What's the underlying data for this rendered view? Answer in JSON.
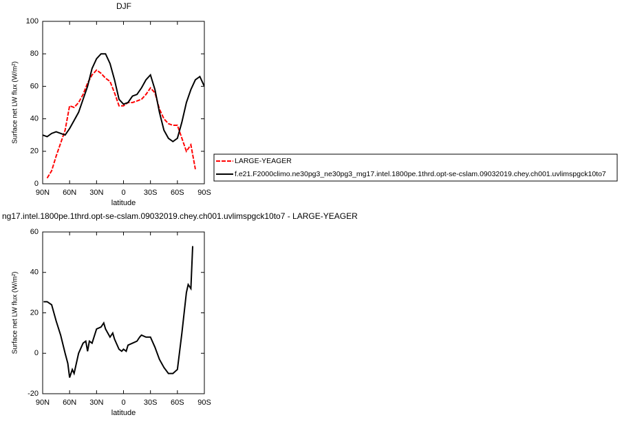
{
  "chart_data": [
    {
      "type": "line",
      "title": "DJF",
      "xlabel": "latitude",
      "ylabel": "Surface net LW flux (W/m²)",
      "x": [
        90,
        85,
        80,
        75,
        70,
        65,
        60,
        55,
        50,
        45,
        40,
        35,
        30,
        25,
        20,
        15,
        10,
        5,
        0,
        -5,
        -10,
        -15,
        -20,
        -25,
        -30,
        -35,
        -40,
        -45,
        -50,
        -55,
        -60,
        -65,
        -70,
        -75,
        -80,
        -85,
        -90
      ],
      "series": [
        {
          "name": "LARGE-YEAGER",
          "color": "#ff0000",
          "dashed": true,
          "values": [
            null,
            3.5,
            8,
            17,
            25,
            33,
            48,
            47,
            50,
            55,
            62,
            67,
            70,
            68,
            65,
            63,
            56,
            48,
            48,
            50,
            50,
            51,
            52,
            55,
            59,
            56,
            46,
            40,
            37,
            36,
            36,
            28,
            20,
            24,
            9,
            null,
            null
          ]
        },
        {
          "name": "f.e21.F2000climo.ne30pg3_ne30pg3_mg17.intel.1800pe.1thrd.opt-se-cslam.09032019.chey.ch001.uvlimspgck10to7",
          "color": "#000000",
          "dashed": false,
          "values": [
            30,
            29,
            31,
            32,
            31,
            30,
            34,
            39,
            44,
            52,
            60,
            71,
            77,
            80,
            80,
            74,
            64,
            52,
            49,
            50,
            54,
            55,
            59,
            64,
            67,
            58,
            44,
            33,
            28,
            26,
            28,
            38,
            50,
            58,
            64,
            66,
            60
          ]
        }
      ],
      "xlim": [
        90,
        -90
      ],
      "xticks": [
        {
          "value": 90,
          "label": "90N"
        },
        {
          "value": 60,
          "label": "60N"
        },
        {
          "value": 30,
          "label": "30N"
        },
        0,
        {
          "value": -30,
          "label": "30S"
        },
        {
          "value": -60,
          "label": "60S"
        },
        {
          "value": -90,
          "label": "90S"
        }
      ],
      "ylim": [
        0,
        100
      ],
      "yticks": [
        0,
        20,
        40,
        60,
        80,
        100
      ],
      "legend": "right"
    },
    {
      "type": "line",
      "title": "ng17.intel.1800pe.1thrd.opt-se-cslam.09032019.chey.ch001.uvlimspgck10to7 - LARGE-YEAGER",
      "xlabel": "latitude",
      "ylabel": "Surface net LW flux (W/m²)",
      "x": [
        89,
        85,
        80,
        75,
        70,
        65,
        62,
        60,
        57,
        55,
        50,
        45,
        42,
        40,
        38,
        35,
        30,
        25,
        22,
        20,
        15,
        12,
        10,
        5,
        2,
        0,
        -3,
        -5,
        -10,
        -15,
        -18,
        -20,
        -25,
        -30,
        -35,
        -40,
        -45,
        -50,
        -55,
        -60,
        -65,
        -70,
        -72,
        -75,
        -77
      ],
      "values": [
        25.5,
        25.5,
        24,
        16,
        9,
        0,
        -5,
        -12,
        -8,
        -10,
        0,
        5,
        6,
        1,
        6,
        5,
        12,
        13,
        15,
        12,
        8,
        10,
        7,
        2,
        1,
        2,
        1,
        4,
        5,
        6,
        8,
        9,
        8,
        8,
        3,
        -3,
        -7,
        -10,
        -10,
        -8,
        10,
        30,
        34,
        32,
        53
      ],
      "color": "#000000",
      "xlim": [
        90,
        -90
      ],
      "xticks": [
        {
          "value": 90,
          "label": "90N"
        },
        {
          "value": 60,
          "label": "60N"
        },
        {
          "value": 30,
          "label": "30N"
        },
        0,
        {
          "value": -30,
          "label": "30S"
        },
        {
          "value": -60,
          "label": "60S"
        },
        {
          "value": -90,
          "label": "90S"
        }
      ],
      "ylim": [
        -20,
        60
      ],
      "yticks": [
        -20,
        0,
        20,
        40,
        60
      ]
    }
  ]
}
